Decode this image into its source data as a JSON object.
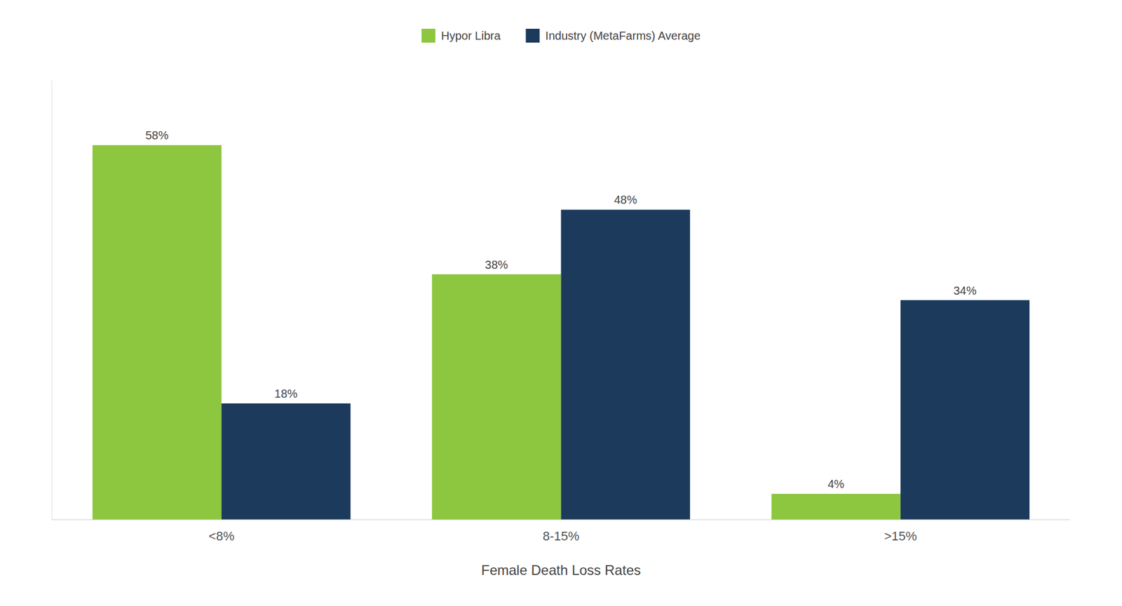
{
  "chart_data": {
    "type": "bar",
    "xlabel": "Female Death Loss Rates",
    "categories": [
      "<8%",
      "8-15%",
      ">15%"
    ],
    "series": [
      {
        "name": "Hypor Libra",
        "color": "#8dc63f",
        "values": [
          58,
          38,
          4
        ],
        "value_labels": [
          "58%",
          "38%",
          "4%"
        ]
      },
      {
        "name": "Industry (MetaFarms) Average",
        "color": "#1b3a5c",
        "values": [
          18,
          48,
          34
        ],
        "value_labels": [
          "18%",
          "48%",
          "34%"
        ]
      }
    ],
    "ylim": [
      0,
      68
    ],
    "data_labels": true,
    "tick_labels": "x",
    "grid": false,
    "legend": "top"
  }
}
